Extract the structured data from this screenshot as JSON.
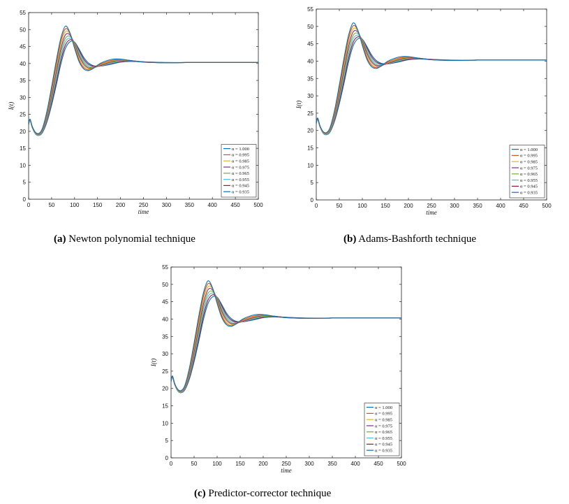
{
  "captions": [
    {
      "letter": "(a)",
      "text": "Newton polynomial technique"
    },
    {
      "letter": "(b)",
      "text": "Adams-Bashforth technique"
    },
    {
      "letter": "(c)",
      "text": "Predictor-corrector technique"
    }
  ],
  "chart_data": [
    {
      "type": "line",
      "xlabel": "time",
      "ylabel": "I(t)",
      "xlim": [
        0,
        500
      ],
      "ylim": [
        0,
        55
      ],
      "xticks": [
        0,
        50,
        100,
        150,
        200,
        250,
        300,
        350,
        400,
        450,
        500
      ],
      "yticks": [
        0,
        5,
        10,
        15,
        20,
        25,
        30,
        35,
        40,
        45,
        50,
        55
      ],
      "grid": false,
      "legend_position": "bottom-right",
      "x": [
        0,
        3,
        8,
        15,
        22,
        30,
        40,
        50,
        60,
        70,
        80,
        90,
        100,
        110,
        120,
        130,
        140,
        150,
        160,
        180,
        200,
        220,
        250,
        300,
        350,
        400,
        450,
        500
      ],
      "series": [
        {
          "name": "α = 1.000",
          "color": "#0072BD",
          "values": [
            22.0,
            23.6,
            21.4,
            19.7,
            19.4,
            20.9,
            26.0,
            33.1,
            40.7,
            47.4,
            51.0,
            49.0,
            44.5,
            40.5,
            38.4,
            37.9,
            38.5,
            39.5,
            40.3,
            41.2,
            41.3,
            40.9,
            40.4,
            40.2,
            40.3,
            40.3,
            40.3,
            40.3
          ]
        },
        {
          "name": "α = 0.995",
          "color": "#D95319",
          "values": [
            22.0,
            23.6,
            21.4,
            19.6,
            19.3,
            20.7,
            25.5,
            32.2,
            39.6,
            46.4,
            50.2,
            48.9,
            44.9,
            41.0,
            38.8,
            38.1,
            38.5,
            39.3,
            40.0,
            40.9,
            41.2,
            40.9,
            40.4,
            40.2,
            40.3,
            40.3,
            40.3,
            40.3
          ]
        },
        {
          "name": "α = 0.985",
          "color": "#EDB120",
          "values": [
            22.0,
            23.5,
            21.3,
            19.5,
            19.2,
            20.5,
            25.0,
            31.4,
            38.5,
            45.3,
            49.3,
            48.7,
            45.3,
            41.6,
            39.3,
            38.4,
            38.6,
            39.2,
            39.8,
            40.7,
            41.1,
            40.9,
            40.4,
            40.2,
            40.3,
            40.3,
            40.3,
            40.3
          ]
        },
        {
          "name": "α = 0.975",
          "color": "#7E2F8E",
          "values": [
            22.0,
            23.5,
            21.3,
            19.5,
            19.1,
            20.3,
            24.5,
            30.6,
            37.5,
            44.2,
            48.4,
            48.4,
            45.7,
            42.2,
            39.8,
            38.7,
            38.7,
            39.1,
            39.6,
            40.5,
            41.0,
            40.9,
            40.5,
            40.2,
            40.3,
            40.3,
            40.3,
            40.3
          ]
        },
        {
          "name": "α = 0.965",
          "color": "#77AC30",
          "values": [
            22.0,
            23.4,
            21.2,
            19.4,
            19.0,
            20.1,
            24.0,
            29.8,
            36.4,
            43.0,
            47.4,
            48.0,
            46.0,
            42.8,
            40.3,
            39.0,
            38.8,
            39.1,
            39.5,
            40.3,
            40.8,
            40.8,
            40.5,
            40.2,
            40.3,
            40.3,
            40.3,
            40.3
          ]
        },
        {
          "name": "α = 0.955",
          "color": "#4DBEEE",
          "values": [
            22.0,
            23.4,
            21.2,
            19.3,
            18.9,
            19.9,
            23.6,
            29.1,
            35.4,
            41.9,
            46.4,
            47.5,
            46.2,
            43.3,
            40.8,
            39.4,
            39.0,
            39.1,
            39.4,
            40.1,
            40.7,
            40.8,
            40.5,
            40.2,
            40.3,
            40.3,
            40.3,
            40.3
          ]
        },
        {
          "name": "α = 0.945",
          "color": "#A2142F",
          "values": [
            22.0,
            23.3,
            21.1,
            19.3,
            18.9,
            19.8,
            23.2,
            28.4,
            34.4,
            40.8,
            45.4,
            47.0,
            46.3,
            43.8,
            41.3,
            39.8,
            39.2,
            39.2,
            39.3,
            40.0,
            40.5,
            40.7,
            40.5,
            40.2,
            40.3,
            40.3,
            40.3,
            40.3
          ]
        },
        {
          "name": "α = 0.935",
          "color": "#0072BD",
          "values": [
            22.0,
            23.3,
            21.1,
            19.2,
            18.8,
            19.6,
            22.8,
            27.7,
            33.5,
            39.7,
            44.4,
            46.4,
            46.3,
            44.2,
            41.8,
            40.2,
            39.4,
            39.2,
            39.3,
            39.8,
            40.4,
            40.6,
            40.5,
            40.3,
            40.3,
            40.3,
            40.3,
            40.3
          ]
        }
      ]
    },
    {
      "type": "line",
      "xlabel": "time",
      "ylabel": "I(t)",
      "xlim": [
        0,
        500
      ],
      "ylim": [
        0,
        55
      ],
      "xticks": [
        0,
        50,
        100,
        150,
        200,
        250,
        300,
        350,
        400,
        450,
        500
      ],
      "yticks": [
        0,
        5,
        10,
        15,
        20,
        25,
        30,
        35,
        40,
        45,
        50,
        55
      ],
      "grid": false,
      "legend_position": "bottom-right",
      "x": [
        0,
        3,
        8,
        15,
        22,
        30,
        40,
        50,
        60,
        70,
        80,
        90,
        100,
        110,
        120,
        130,
        140,
        150,
        160,
        180,
        200,
        220,
        250,
        300,
        350,
        400,
        450,
        500
      ],
      "series": [
        {
          "name": "α = 1.000",
          "color": "#0072BD",
          "values": [
            22.0,
            23.6,
            21.4,
            19.7,
            19.4,
            20.9,
            26.0,
            33.1,
            40.7,
            47.4,
            51.0,
            49.0,
            44.5,
            40.5,
            38.4,
            37.9,
            38.5,
            39.5,
            40.3,
            41.2,
            41.3,
            40.9,
            40.4,
            40.2,
            40.3,
            40.3,
            40.3,
            40.3
          ]
        },
        {
          "name": "α = 0.995",
          "color": "#D95319",
          "values": [
            22.0,
            23.6,
            21.4,
            19.6,
            19.3,
            20.7,
            25.5,
            32.2,
            39.6,
            46.4,
            50.2,
            48.9,
            44.9,
            41.0,
            38.8,
            38.1,
            38.5,
            39.3,
            40.0,
            40.9,
            41.2,
            40.9,
            40.4,
            40.2,
            40.3,
            40.3,
            40.3,
            40.3
          ]
        },
        {
          "name": "α = 0.985",
          "color": "#EDB120",
          "values": [
            22.0,
            23.5,
            21.3,
            19.5,
            19.2,
            20.5,
            25.0,
            31.4,
            38.5,
            45.3,
            49.3,
            48.7,
            45.3,
            41.6,
            39.3,
            38.4,
            38.6,
            39.2,
            39.8,
            40.7,
            41.1,
            40.9,
            40.4,
            40.2,
            40.3,
            40.3,
            40.3,
            40.3
          ]
        },
        {
          "name": "α = 0.975",
          "color": "#7E2F8E",
          "values": [
            22.0,
            23.5,
            21.3,
            19.5,
            19.1,
            20.3,
            24.5,
            30.6,
            37.5,
            44.2,
            48.4,
            48.4,
            45.7,
            42.2,
            39.8,
            38.7,
            38.7,
            39.1,
            39.6,
            40.5,
            41.0,
            40.9,
            40.5,
            40.2,
            40.3,
            40.3,
            40.3,
            40.3
          ]
        },
        {
          "name": "α = 0.965",
          "color": "#77AC30",
          "values": [
            22.0,
            23.4,
            21.2,
            19.4,
            19.0,
            20.1,
            24.0,
            29.8,
            36.4,
            43.0,
            47.4,
            48.0,
            46.0,
            42.8,
            40.3,
            39.0,
            38.8,
            39.1,
            39.5,
            40.3,
            40.8,
            40.8,
            40.5,
            40.2,
            40.3,
            40.3,
            40.3,
            40.3
          ]
        },
        {
          "name": "α = 0.955",
          "color": "#4DBEEE",
          "values": [
            22.0,
            23.4,
            21.2,
            19.3,
            18.9,
            19.9,
            23.6,
            29.1,
            35.4,
            41.9,
            46.4,
            47.5,
            46.2,
            43.3,
            40.8,
            39.4,
            39.0,
            39.1,
            39.4,
            40.1,
            40.7,
            40.8,
            40.5,
            40.2,
            40.3,
            40.3,
            40.3,
            40.3
          ]
        },
        {
          "name": "α = 0.945",
          "color": "#A2142F",
          "values": [
            22.0,
            23.3,
            21.1,
            19.3,
            18.9,
            19.8,
            23.2,
            28.4,
            34.4,
            40.8,
            45.4,
            47.0,
            46.3,
            43.8,
            41.3,
            39.8,
            39.2,
            39.2,
            39.3,
            40.0,
            40.5,
            40.7,
            40.5,
            40.2,
            40.3,
            40.3,
            40.3,
            40.3
          ]
        },
        {
          "name": "α = 0.935",
          "color": "#0072BD",
          "values": [
            22.0,
            23.3,
            21.1,
            19.2,
            18.8,
            19.6,
            22.8,
            27.7,
            33.5,
            39.7,
            44.4,
            46.4,
            46.3,
            44.2,
            41.8,
            40.2,
            39.4,
            39.2,
            39.3,
            39.8,
            40.4,
            40.6,
            40.5,
            40.3,
            40.3,
            40.3,
            40.3,
            40.3
          ]
        }
      ]
    },
    {
      "type": "line",
      "xlabel": "time",
      "ylabel": "I(t)",
      "xlim": [
        0,
        500
      ],
      "ylim": [
        0,
        55
      ],
      "xticks": [
        0,
        50,
        100,
        150,
        200,
        250,
        300,
        350,
        400,
        450,
        500
      ],
      "yticks": [
        0,
        5,
        10,
        15,
        20,
        25,
        30,
        35,
        40,
        45,
        50,
        55
      ],
      "grid": false,
      "legend_position": "bottom-right",
      "x": [
        0,
        3,
        8,
        15,
        22,
        30,
        40,
        50,
        60,
        70,
        80,
        90,
        100,
        110,
        120,
        130,
        140,
        150,
        160,
        180,
        200,
        220,
        250,
        300,
        350,
        400,
        450,
        500
      ],
      "series": [
        {
          "name": "α = 1.000",
          "color": "#0072BD",
          "values": [
            22.0,
            23.6,
            21.4,
            19.7,
            19.4,
            20.9,
            26.0,
            33.1,
            40.7,
            47.4,
            51.0,
            49.0,
            44.5,
            40.5,
            38.4,
            37.9,
            38.5,
            39.5,
            40.3,
            41.2,
            41.3,
            40.9,
            40.4,
            40.2,
            40.3,
            40.3,
            40.3,
            40.3
          ]
        },
        {
          "name": "α = 0.995",
          "color": "#D95319",
          "values": [
            22.0,
            23.6,
            21.4,
            19.6,
            19.3,
            20.7,
            25.5,
            32.2,
            39.6,
            46.4,
            50.2,
            48.9,
            44.9,
            41.0,
            38.8,
            38.1,
            38.5,
            39.3,
            40.0,
            40.9,
            41.2,
            40.9,
            40.4,
            40.2,
            40.3,
            40.3,
            40.3,
            40.3
          ]
        },
        {
          "name": "α = 0.985",
          "color": "#EDB120",
          "values": [
            22.0,
            23.5,
            21.3,
            19.5,
            19.2,
            20.5,
            25.0,
            31.4,
            38.5,
            45.3,
            49.3,
            48.7,
            45.3,
            41.6,
            39.3,
            38.4,
            38.6,
            39.2,
            39.8,
            40.7,
            41.1,
            40.9,
            40.4,
            40.2,
            40.3,
            40.3,
            40.3,
            40.3
          ]
        },
        {
          "name": "α = 0.975",
          "color": "#7E2F8E",
          "values": [
            22.0,
            23.5,
            21.3,
            19.5,
            19.1,
            20.3,
            24.5,
            30.6,
            37.5,
            44.2,
            48.4,
            48.4,
            45.7,
            42.2,
            39.8,
            38.7,
            38.7,
            39.1,
            39.6,
            40.5,
            41.0,
            40.9,
            40.5,
            40.2,
            40.3,
            40.3,
            40.3,
            40.3
          ]
        },
        {
          "name": "α = 0.965",
          "color": "#77AC30",
          "values": [
            22.0,
            23.4,
            21.2,
            19.4,
            19.0,
            20.1,
            24.0,
            29.8,
            36.4,
            43.0,
            47.4,
            48.0,
            46.0,
            42.8,
            40.3,
            39.0,
            38.8,
            39.1,
            39.5,
            40.3,
            40.8,
            40.8,
            40.5,
            40.2,
            40.3,
            40.3,
            40.3,
            40.3
          ]
        },
        {
          "name": "α = 0.955",
          "color": "#4DBEEE",
          "values": [
            22.0,
            23.4,
            21.2,
            19.3,
            18.9,
            19.9,
            23.6,
            29.1,
            35.4,
            41.9,
            46.4,
            47.5,
            46.2,
            43.3,
            40.8,
            39.4,
            39.0,
            39.1,
            39.4,
            40.1,
            40.7,
            40.8,
            40.5,
            40.2,
            40.3,
            40.3,
            40.3,
            40.3
          ]
        },
        {
          "name": "α = 0.945",
          "color": "#A2142F",
          "values": [
            22.0,
            23.3,
            21.1,
            19.3,
            18.9,
            19.8,
            23.2,
            28.4,
            34.4,
            40.8,
            45.4,
            47.0,
            46.3,
            43.8,
            41.3,
            39.8,
            39.2,
            39.2,
            39.3,
            40.0,
            40.5,
            40.7,
            40.5,
            40.2,
            40.3,
            40.3,
            40.3,
            40.3
          ]
        },
        {
          "name": "α = 0.935",
          "color": "#0072BD",
          "values": [
            22.0,
            23.3,
            21.1,
            19.2,
            18.8,
            19.6,
            22.8,
            27.7,
            33.5,
            39.7,
            44.4,
            46.4,
            46.3,
            44.2,
            41.8,
            40.2,
            39.4,
            39.2,
            39.3,
            39.8,
            40.4,
            40.6,
            40.5,
            40.3,
            40.3,
            40.3,
            40.3,
            40.3
          ]
        }
      ]
    }
  ]
}
